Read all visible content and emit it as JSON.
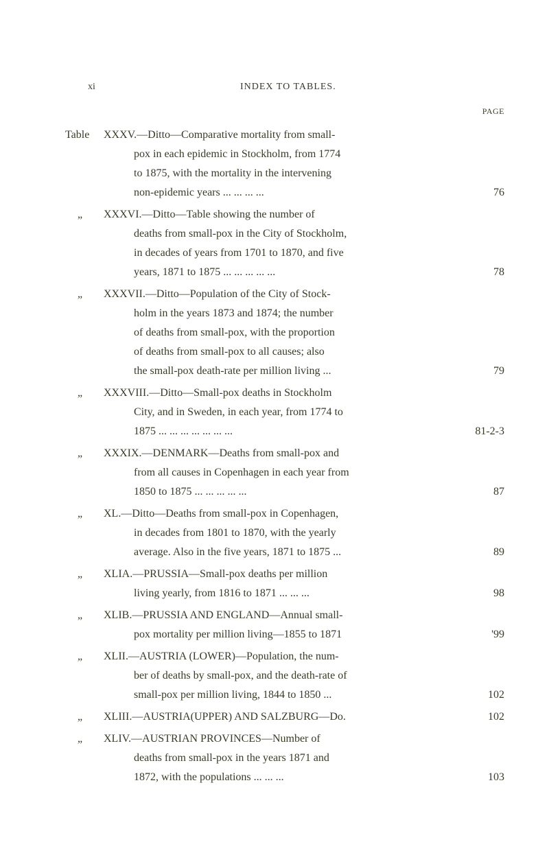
{
  "page_number": "xi",
  "running_head": "INDEX TO TABLES.",
  "page_marker": "PAGE",
  "entries": [
    {
      "label": "Table",
      "roman": "XXXV.",
      "lines": [
        "—Ditto—Comparative mortality from small-",
        "pox in each epidemic in Stockholm, from 1774",
        "to 1875, with the mortality in the intervening",
        "non-epidemic years       ...      ...      ...      ..."
      ],
      "page": "76"
    },
    {
      "label": "„",
      "roman": "XXXVI.",
      "lines": [
        "—Ditto—Table showing the number of",
        "deaths from small-pox in the City of Stockholm,",
        "in decades of years from 1701 to 1870, and five",
        "years, 1871 to 1875 ...      ...      ...      ...      ..."
      ],
      "page": "78"
    },
    {
      "label": "„",
      "roman": "XXXVII.",
      "lines": [
        "—Ditto—Population of the City of Stock-",
        "holm in the years 1873 and 1874; the number",
        "of deaths from small-pox, with the proportion",
        "of deaths from small-pox to all causes; also",
        "the small-pox death-rate per million living     ..."
      ],
      "page": "79"
    },
    {
      "label": "„",
      "roman": "XXXVIII.",
      "lines": [
        "—Ditto—Small-pox deaths in Stockholm",
        "City, and in Sweden, in each year, from 1774 to",
        "1875 ...      ...      ...      ...      ...      ...      ..."
      ],
      "page": "81-2-3"
    },
    {
      "label": "„",
      "roman": "XXXIX.",
      "lines": [
        "—DENMARK—Deaths from small-pox and",
        "from all causes in Copenhagen in each year from",
        "1850 to 1875            ...      ...      ...      ...      ..."
      ],
      "page": "87"
    },
    {
      "label": "„",
      "roman": "XL.",
      "lines": [
        "—Ditto—Deaths from small-pox in Copenhagen,",
        "in decades from 1801 to 1870, with the yearly",
        "average.   Also in the five years, 1871 to 1875 ..."
      ],
      "page": "89"
    },
    {
      "label": "„",
      "roman": "XLIA.",
      "lines": [
        "—PRUSSIA—Small-pox deaths per million",
        "living yearly, from 1816 to 1871 ...      ...      ..."
      ],
      "page": "98"
    },
    {
      "label": "„",
      "roman": "XLIB.",
      "lines": [
        "—PRUSSIA AND ENGLAND—Annual small-",
        "pox mortality per million living—1855 to 1871"
      ],
      "page": "'99"
    },
    {
      "label": "„",
      "roman": "XLII.",
      "lines": [
        "—AUSTRIA (LOWER)—Population, the num-",
        "ber of deaths by small-pox, and the death-rate of",
        "small-pox per million living, 1844 to 1850       ..."
      ],
      "page": "102"
    },
    {
      "label": "„",
      "roman": "XLIII.",
      "lines": [
        "—AUSTRIA(UPPER) AND SALZBURG—Do."
      ],
      "page": "102"
    },
    {
      "label": "„",
      "roman": "XLIV.",
      "lines": [
        "—AUSTRIAN PROVINCES—Number of",
        "deaths from small-pox in the years 1871 and",
        "1872, with the populations            ...      ...      ..."
      ],
      "page": "103"
    }
  ]
}
